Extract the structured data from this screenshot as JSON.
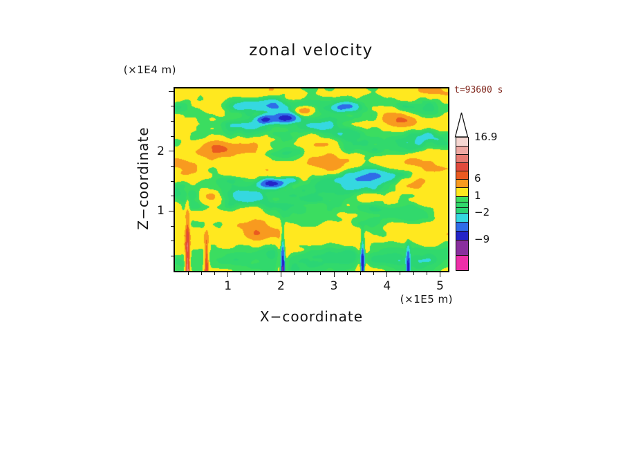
{
  "figure": {
    "background": "#ffffff",
    "frame_color": "#000000",
    "text_color": "#141414",
    "annotation_color": "#82291f"
  },
  "chart_data": {
    "type": "heatmap",
    "title": "zonal velocity",
    "time_label": "t=93600 s",
    "xlabel": "X−coordinate",
    "ylabel": "Z−coordinate",
    "x_unit_label": "(×1E5 m)",
    "y_unit_label": "(×1E4 m)",
    "x_ticks": [
      1,
      2,
      3,
      4,
      5
    ],
    "y_ticks": [
      1,
      2
    ],
    "xlim": [
      0,
      5.15
    ],
    "ylim": [
      0,
      3.05
    ],
    "grid": false,
    "legend_position": "right",
    "field_summary": "Filled-contour snapshot of a turbulent zonal velocity field at t=93600 s. Horizontally elongated structures; background mostly green (≈ −2..1) and yellow (≈ 1..3.5) with orange bands (≈ 3.5..8), cyan/blue patches (< −2) and a few deep-blue cores (< −6.5); thin vertical plumes rise from the lower boundary near x≈2.05×1E5 m and x≈3.5×1E5 m.",
    "levels": [
      -12,
      -9,
      -6.5,
      -4,
      -2,
      -1,
      0,
      1,
      3.5,
      6,
      8.2,
      10.4,
      12.6,
      14.8,
      16.9
    ],
    "colors": [
      "#ee2fa8",
      "#8a2f9e",
      "#2424c8",
      "#2f6ce8",
      "#35d8e0",
      "#2bd574",
      "#31d96c",
      "#3bdd60",
      "#ffe81f",
      "#f89a1f",
      "#ea5a20",
      "#e14a3c",
      "#e87b72",
      "#efa9a3",
      "#f6d7d2",
      "#ffffff"
    ],
    "colorbar": {
      "arrow_color": "#ffffff",
      "segments": [
        {
          "color": "#f6d7d2",
          "h": 12
        },
        {
          "color": "#efa9a3",
          "h": 12
        },
        {
          "color": "#e87b72",
          "h": 12
        },
        {
          "color": "#e14a3c",
          "h": 12
        },
        {
          "color": "#ea5a20",
          "h": 12
        },
        {
          "color": "#f89a1f",
          "h": 12
        },
        {
          "color": "#ffe81f",
          "h": 13
        },
        {
          "color": "#3bdd60",
          "h": 8
        },
        {
          "color": "#31d96c",
          "h": 8
        },
        {
          "color": "#2bd574",
          "h": 8
        },
        {
          "color": "#35d8e0",
          "h": 13
        },
        {
          "color": "#2f6ce8",
          "h": 13
        },
        {
          "color": "#2424c8",
          "h": 13
        },
        {
          "color": "#8a2f9e",
          "h": 22
        },
        {
          "color": "#ee2fa8",
          "h": 22
        }
      ],
      "labels": [
        {
          "text": "16.9",
          "boundary": 0
        },
        {
          "text": "6",
          "boundary": 5
        },
        {
          "text": "1",
          "boundary": 7
        },
        {
          "text": "−2",
          "boundary": 10
        },
        {
          "text": "−9",
          "boundary": 13
        }
      ]
    },
    "noise": {
      "seed": 20,
      "base": 0.9,
      "octaves": [
        {
          "gw": 7,
          "gh": 10,
          "amp": 2.4
        },
        {
          "gw": 14,
          "gh": 20,
          "amp": 1.5
        },
        {
          "gw": 30,
          "gh": 36,
          "amp": 0.7
        }
      ],
      "bands": [
        {
          "amp": 1.4,
          "freq": 5.6,
          "phase": 0.5
        },
        {
          "amp": 0.8,
          "freq": 9.3,
          "phase": 2.0
        }
      ],
      "damp_start": 0.6,
      "damp_max": 0.5,
      "blobs": [
        {
          "u": 0.4,
          "w": 0.16,
          "amp": -8,
          "su": 0.05,
          "sw": 0.03
        },
        {
          "u": 0.33,
          "w": 0.17,
          "amp": -7,
          "su": 0.03,
          "sw": 0.025
        },
        {
          "u": 0.3,
          "w": 0.09,
          "amp": -4,
          "su": 0.18,
          "sw": 0.035
        },
        {
          "u": 0.355,
          "w": 0.52,
          "amp": -8,
          "su": 0.05,
          "sw": 0.028
        },
        {
          "u": 0.43,
          "w": 0.5,
          "amp": -6,
          "su": 0.03,
          "sw": 0.02
        },
        {
          "u": 0.63,
          "w": 0.1,
          "amp": -5,
          "su": 0.05,
          "sw": 0.03
        },
        {
          "u": 0.75,
          "w": 0.47,
          "amp": -4,
          "su": 0.12,
          "sw": 0.04
        },
        {
          "u": 0.52,
          "w": 0.3,
          "amp": 5.5,
          "su": 0.08,
          "sw": 0.04
        },
        {
          "u": 0.18,
          "w": 0.33,
          "amp": 5,
          "su": 0.09,
          "sw": 0.05
        },
        {
          "u": 0.83,
          "w": 0.17,
          "amp": 6,
          "su": 0.07,
          "sw": 0.05
        },
        {
          "u": 0.47,
          "w": 0.12,
          "amp": 6,
          "su": 0.03,
          "sw": 0.025
        },
        {
          "u": 0.88,
          "w": 0.52,
          "amp": 5,
          "su": 0.06,
          "sw": 0.04
        },
        {
          "u": 0.3,
          "w": 0.78,
          "amp": 5,
          "su": 0.06,
          "sw": 0.05
        },
        {
          "u": 0.13,
          "w": 0.6,
          "amp": 5.5,
          "su": 0.05,
          "sw": 0.04
        }
      ],
      "spikes": [
        {
          "u": 0.395,
          "start": 0.7,
          "amp": -13,
          "halo": 4
        },
        {
          "u": 0.688,
          "start": 0.74,
          "amp": -13,
          "halo": 4
        },
        {
          "u": 0.045,
          "start": 0.55,
          "amp": 12,
          "halo": 0
        },
        {
          "u": 0.115,
          "start": 0.72,
          "amp": 9,
          "halo": 0
        },
        {
          "u": 0.855,
          "start": 0.8,
          "amp": -9,
          "halo": 2
        }
      ]
    }
  }
}
